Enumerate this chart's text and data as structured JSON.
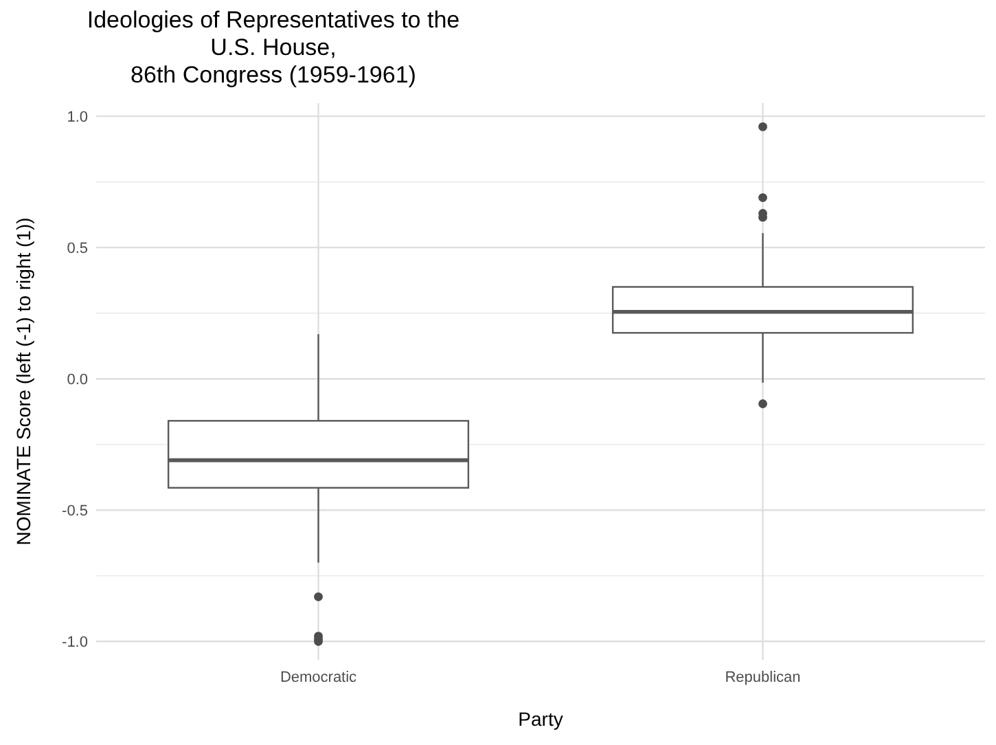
{
  "chart_data": {
    "type": "box",
    "title": "Ideologies of Representatives to the\nU.S. House,\n86th Congress (1959-1961)",
    "xlabel": "Party",
    "ylabel": "NOMINATE Score (left (-1) to right (1))",
    "categories": [
      "Democratic",
      "Republican"
    ],
    "boxes": [
      {
        "low": -0.7,
        "q1": -0.415,
        "median": -0.31,
        "q3": -0.16,
        "high": 0.17,
        "outliers": [
          -0.83,
          -0.98,
          -0.99,
          -1.0
        ]
      },
      {
        "low": -0.015,
        "q1": 0.175,
        "median": 0.255,
        "q3": 0.35,
        "high": 0.555,
        "outliers": [
          0.96,
          0.69,
          0.63,
          0.615,
          -0.095
        ]
      }
    ],
    "color": "#595959",
    "ylim": [
      -1.07,
      1.05
    ],
    "yticks": [
      {
        "value": -1,
        "label": "-1.0"
      },
      {
        "value": -0.5,
        "label": "-0.5"
      },
      {
        "value": 0,
        "label": "0.0"
      },
      {
        "value": 0.5,
        "label": "0.5"
      },
      {
        "value": 1,
        "label": "1.0"
      }
    ],
    "grid": true
  }
}
